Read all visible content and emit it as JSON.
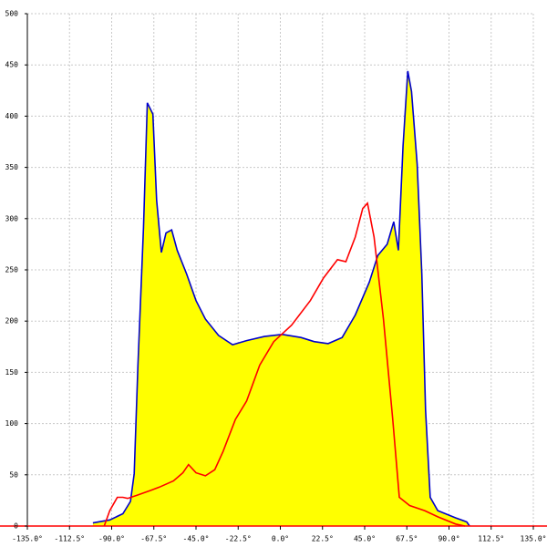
{
  "chart_data": {
    "type": "line",
    "grid": true,
    "xlim": [
      -135,
      135
    ],
    "ylim": [
      0,
      500
    ],
    "xticks": [
      {
        "value": -135,
        "label": "-135.0°"
      },
      {
        "value": -112.5,
        "label": "-112.5°"
      },
      {
        "value": -90,
        "label": "-90.0°"
      },
      {
        "value": -67.5,
        "label": "-67.5°"
      },
      {
        "value": -45,
        "label": "-45.0°"
      },
      {
        "value": -22.5,
        "label": "-22.5°"
      },
      {
        "value": 0,
        "label": "0.0°"
      },
      {
        "value": 22.5,
        "label": "22.5°"
      },
      {
        "value": 45,
        "label": "45.0°"
      },
      {
        "value": 67.5,
        "label": "67.5°"
      },
      {
        "value": 90,
        "label": "90.0°"
      },
      {
        "value": 112.5,
        "label": "112.5°"
      },
      {
        "value": 135,
        "label": "135.0°"
      }
    ],
    "yticks": [
      0,
      50,
      100,
      150,
      200,
      250,
      300,
      350,
      400,
      450,
      500
    ],
    "series": [
      {
        "color": "#0000cc",
        "fill": "#ffff00",
        "x": [
          -100,
          -91,
          -84,
          -80,
          -78,
          -76,
          -73,
          -71,
          -68,
          -66,
          -63.5,
          -61,
          -58,
          -55,
          -50,
          -45,
          -40,
          -33,
          -25.5,
          -18,
          -8.5,
          1,
          11,
          18,
          25.5,
          33,
          40,
          47.5,
          52,
          57,
          60.5,
          63,
          65.5,
          68,
          70,
          73,
          75.5,
          77.5,
          80,
          84,
          93.5,
          99.5,
          101
        ],
        "values": [
          3,
          6,
          12,
          24,
          51,
          157,
          291,
          413,
          402,
          318,
          267,
          286,
          289,
          269,
          246,
          220,
          202,
          186,
          177,
          181,
          185,
          187,
          184,
          180,
          178,
          184,
          206,
          238,
          264,
          275,
          297,
          269,
          371,
          444,
          424,
          353,
          246,
          113,
          28,
          15,
          8,
          4,
          0
        ]
      },
      {
        "color": "#ff0000",
        "x": [
          -94,
          -91,
          -87,
          -84,
          -81.5,
          -76.5,
          -69,
          -64.5,
          -57,
          -52,
          -49,
          -45,
          -40,
          -35,
          -30.5,
          -24,
          -18,
          -11,
          -3.5,
          6,
          16,
          23,
          30.5,
          35,
          40,
          44,
          46.5,
          50,
          55,
          60,
          63.5,
          69,
          77,
          84,
          93.5,
          98.5
        ],
        "values": [
          0,
          15,
          28,
          28,
          27,
          30,
          35,
          38,
          44,
          52,
          60,
          52,
          49,
          55,
          73,
          104,
          122,
          157,
          180,
          196,
          220,
          242,
          260,
          258,
          282,
          310,
          315,
          282,
          202,
          104,
          28,
          20,
          15,
          9,
          2,
          0
        ]
      }
    ]
  }
}
